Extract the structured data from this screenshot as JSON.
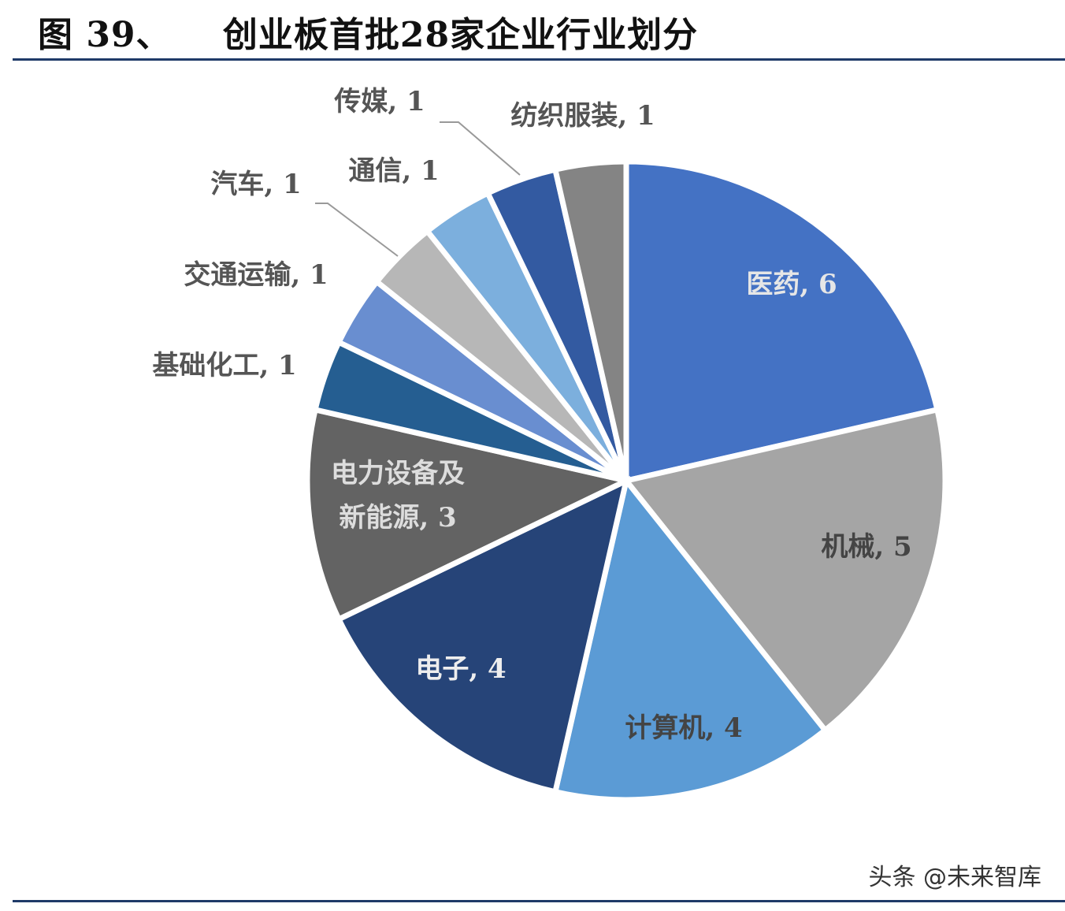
{
  "header": {
    "figure_no": "图 39、",
    "title": "创业板首批28家企业行业划分"
  },
  "watermark": "头条 @未来智库",
  "chart_data": {
    "type": "pie",
    "title": "创业板首批28家企业行业划分",
    "start": "top",
    "direction": "clockwise",
    "categories": [
      "医药",
      "机械",
      "计算机",
      "电子",
      "电力设备及新能源",
      "基础化工",
      "交通运输",
      "汽车",
      "通信",
      "传媒",
      "纺织服装"
    ],
    "values": [
      6,
      5,
      4,
      4,
      3,
      1,
      1,
      1,
      1,
      1,
      1
    ],
    "labels": [
      "医药, 6",
      "机械, 5",
      "计算机, 4",
      "电子, 4",
      "电力设备及新能源, 3",
      "基础化工, 1",
      "交通运输, 1",
      "汽车, 1",
      "通信, 1",
      "传媒, 1",
      "纺织服装, 1"
    ],
    "colors": [
      "#4472c4",
      "#a5a5a5",
      "#5b9bd5",
      "#264478",
      "#636363",
      "#255e91",
      "#698ed0",
      "#b7b7b7",
      "#7cafdd",
      "#335aa1",
      "#848484"
    ]
  }
}
